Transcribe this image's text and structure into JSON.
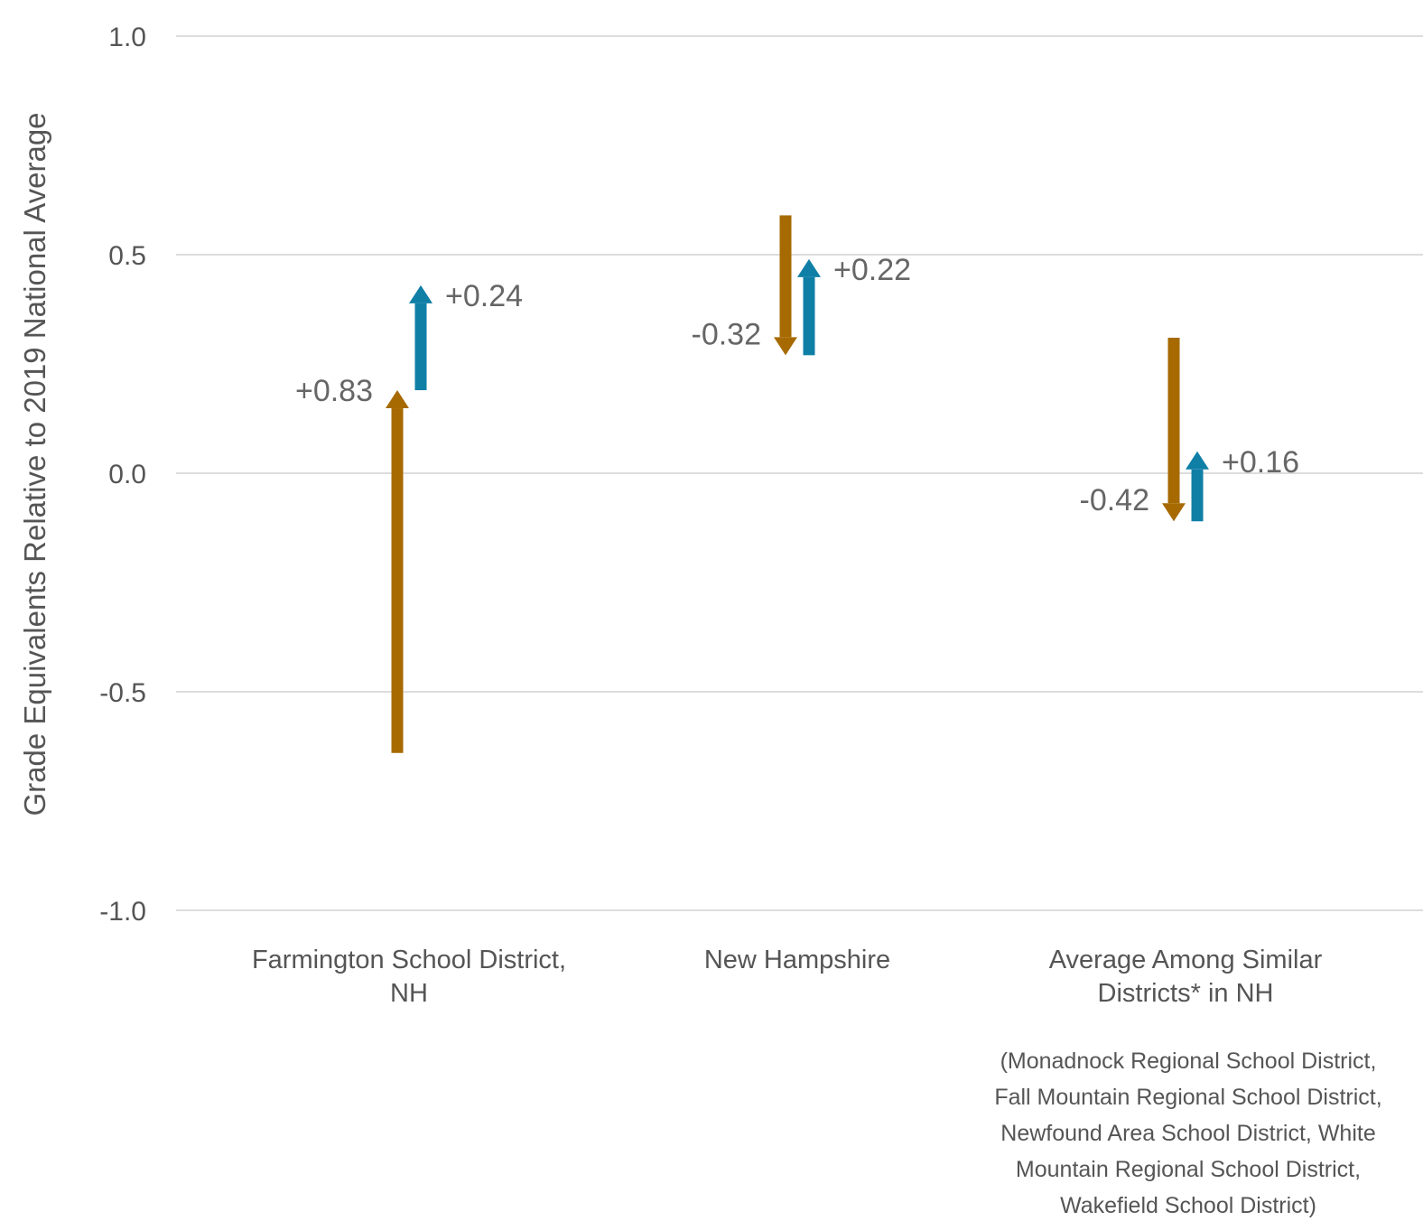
{
  "chart_data": {
    "type": "arrow",
    "ylabel": "Grade Equivalents Relative to 2019 National Average",
    "ylim": [
      -1.0,
      1.0
    ],
    "yticks": [
      "1.0",
      "0.5",
      "0.0",
      "-0.5",
      "-1.0"
    ],
    "ytick_values": [
      1.0,
      0.5,
      0.0,
      -0.5,
      -1.0
    ],
    "grid": true,
    "colors": {
      "first": "#a66a00",
      "second": "#0f7fa6",
      "grid": "#dddddd"
    },
    "categories": [
      {
        "lines": [
          "Farmington School District,",
          "NH"
        ]
      },
      {
        "lines": [
          "New Hampshire"
        ]
      },
      {
        "lines": [
          "Average Among Similar",
          "Districts* in NH"
        ]
      }
    ],
    "series": [
      {
        "color": "#a66a00",
        "arrows": [
          {
            "from": -0.64,
            "to": 0.19,
            "label": "+0.83"
          },
          {
            "from": 0.59,
            "to": 0.27,
            "label": "-0.32"
          },
          {
            "from": 0.31,
            "to": -0.11,
            "label": "-0.42"
          }
        ]
      },
      {
        "color": "#0f7fa6",
        "arrows": [
          {
            "from": 0.19,
            "to": 0.43,
            "label": "+0.24"
          },
          {
            "from": 0.27,
            "to": 0.49,
            "label": "+0.22"
          },
          {
            "from": -0.11,
            "to": 0.05,
            "label": "+0.16"
          }
        ]
      }
    ],
    "footnote": [
      "(Monadnock Regional School District,",
      "Fall Mountain Regional School District,",
      "Newfound Area School District, White",
      "Mountain Regional School District,",
      "Wakefield School District)"
    ]
  }
}
